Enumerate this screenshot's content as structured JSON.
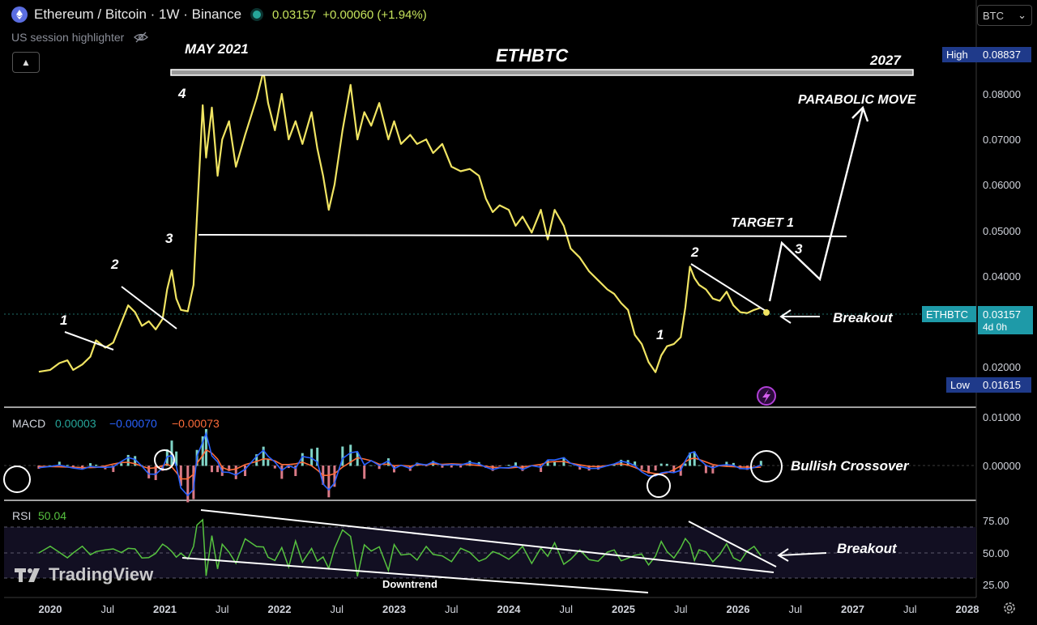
{
  "header": {
    "symbol_title": "Ethereum / Bitcoin · 1W · Binance",
    "last_price": "0.03157",
    "change": "+0.00060 (+1.94%)",
    "session_label": "US session highlighter",
    "currency_select": "BTC"
  },
  "branding": {
    "logo_text": "TradingView"
  },
  "colors": {
    "price_line": "#f0e462",
    "macd": "#2962ff",
    "signal": "#ff6d3a",
    "rsi": "#56c23f",
    "accent_blue": "#1f3a8a",
    "teal": "#1e9aa8"
  },
  "chart_data": [
    {
      "type": "line",
      "title": "ETHBTC",
      "series": [
        {
          "name": "ETHBTC",
          "points": [
            [
              2019.9,
              0.0189
            ],
            [
              2020.0,
              0.0193
            ],
            [
              2020.08,
              0.0208
            ],
            [
              2020.15,
              0.0214
            ],
            [
              2020.2,
              0.0193
            ],
            [
              2020.28,
              0.0205
            ],
            [
              2020.35,
              0.0222
            ],
            [
              2020.4,
              0.0258
            ],
            [
              2020.48,
              0.0242
            ],
            [
              2020.55,
              0.0253
            ],
            [
              2020.62,
              0.0297
            ],
            [
              2020.68,
              0.0335
            ],
            [
              2020.74,
              0.032
            ],
            [
              2020.8,
              0.029
            ],
            [
              2020.86,
              0.03
            ],
            [
              2020.92,
              0.0282
            ],
            [
              2020.98,
              0.0305
            ],
            [
              2021.02,
              0.037
            ],
            [
              2021.06,
              0.0412
            ],
            [
              2021.1,
              0.035
            ],
            [
              2021.14,
              0.0325
            ],
            [
              2021.2,
              0.0322
            ],
            [
              2021.25,
              0.038
            ],
            [
              2021.28,
              0.053
            ],
            [
              2021.33,
              0.0775
            ],
            [
              2021.36,
              0.066
            ],
            [
              2021.41,
              0.077
            ],
            [
              2021.46,
              0.062
            ],
            [
              2021.5,
              0.07
            ],
            [
              2021.56,
              0.074
            ],
            [
              2021.62,
              0.064
            ],
            [
              2021.7,
              0.071
            ],
            [
              2021.8,
              0.079
            ],
            [
              2021.86,
              0.085
            ],
            [
              2021.9,
              0.078
            ],
            [
              2021.96,
              0.072
            ],
            [
              2022.02,
              0.08
            ],
            [
              2022.08,
              0.07
            ],
            [
              2022.14,
              0.074
            ],
            [
              2022.2,
              0.069
            ],
            [
              2022.28,
              0.076
            ],
            [
              2022.33,
              0.068
            ],
            [
              2022.38,
              0.062
            ],
            [
              2022.43,
              0.0545
            ],
            [
              2022.48,
              0.06
            ],
            [
              2022.55,
              0.072
            ],
            [
              2022.62,
              0.082
            ],
            [
              2022.68,
              0.07
            ],
            [
              2022.74,
              0.076
            ],
            [
              2022.8,
              0.073
            ],
            [
              2022.87,
              0.078
            ],
            [
              2022.95,
              0.07
            ],
            [
              2023.0,
              0.074
            ],
            [
              2023.06,
              0.069
            ],
            [
              2023.14,
              0.071
            ],
            [
              2023.2,
              0.069
            ],
            [
              2023.28,
              0.07
            ],
            [
              2023.34,
              0.067
            ],
            [
              2023.42,
              0.069
            ],
            [
              2023.5,
              0.064
            ],
            [
              2023.58,
              0.063
            ],
            [
              2023.66,
              0.0635
            ],
            [
              2023.74,
              0.062
            ],
            [
              2023.8,
              0.057
            ],
            [
              2023.86,
              0.054
            ],
            [
              2023.92,
              0.0555
            ],
            [
              2024.0,
              0.0545
            ],
            [
              2024.06,
              0.051
            ],
            [
              2024.12,
              0.053
            ],
            [
              2024.2,
              0.0495
            ],
            [
              2024.28,
              0.0545
            ],
            [
              2024.34,
              0.048
            ],
            [
              2024.4,
              0.0545
            ],
            [
              2024.48,
              0.051
            ],
            [
              2024.54,
              0.046
            ],
            [
              2024.62,
              0.044
            ],
            [
              2024.7,
              0.041
            ],
            [
              2024.78,
              0.039
            ],
            [
              2024.86,
              0.037
            ],
            [
              2024.92,
              0.036
            ],
            [
              2024.98,
              0.034
            ],
            [
              2025.04,
              0.0325
            ],
            [
              2025.1,
              0.027
            ],
            [
              2025.16,
              0.025
            ],
            [
              2025.22,
              0.021
            ],
            [
              2025.28,
              0.0188
            ],
            [
              2025.33,
              0.0225
            ],
            [
              2025.38,
              0.0245
            ],
            [
              2025.44,
              0.025
            ],
            [
              2025.5,
              0.0265
            ],
            [
              2025.54,
              0.033
            ],
            [
              2025.58,
              0.042
            ],
            [
              2025.62,
              0.0395
            ],
            [
              2025.66,
              0.038
            ],
            [
              2025.72,
              0.037
            ],
            [
              2025.78,
              0.035
            ],
            [
              2025.84,
              0.0345
            ],
            [
              2025.9,
              0.0365
            ],
            [
              2025.96,
              0.0335
            ],
            [
              2026.02,
              0.032
            ],
            [
              2026.08,
              0.0318
            ],
            [
              2026.14,
              0.0325
            ],
            [
              2026.2,
              0.033
            ]
          ]
        }
      ],
      "yticks": [
        "0.08000",
        "0.07000",
        "0.06000",
        "0.05000",
        "0.04000",
        "0.02000"
      ],
      "xticks": [
        "2020",
        "Jul",
        "2021",
        "Jul",
        "2022",
        "Jul",
        "2023",
        "Jul",
        "2024",
        "Jul",
        "2025",
        "Jul",
        "2026",
        "Jul",
        "2027",
        "Jul",
        "2028"
      ],
      "ylim": [
        0.0175,
        0.091
      ],
      "high": {
        "label": "High",
        "value": "0.08837"
      },
      "low": {
        "label": "Low",
        "value": "0.01615"
      },
      "current": {
        "label": "ETHBTC",
        "value": "0.03157",
        "countdown": "4d 0h"
      },
      "annotations": {
        "may2021": "MAY 2021",
        "title": "ETHBTC",
        "y2027": "2027",
        "parabolic": "PARABOLIC MOVE",
        "target": "TARGET 1",
        "breakout": "Breakout",
        "waves": [
          "1",
          "2",
          "3",
          "4",
          "1",
          "2",
          "3"
        ]
      }
    },
    {
      "type": "line",
      "title": "MACD",
      "values": {
        "histogram": "0.00003",
        "macd": "−0.00070",
        "signal": "−0.00073"
      },
      "yticks": [
        "0.01000",
        "0.00000"
      ],
      "annotation": "Bullish Crossover"
    },
    {
      "type": "line",
      "title": "RSI",
      "value": "50.04",
      "yticks": [
        "75.00",
        "50.00",
        "25.00"
      ],
      "annotations": {
        "downtrend": "Downtrend",
        "breakout": "Breakout"
      }
    }
  ]
}
